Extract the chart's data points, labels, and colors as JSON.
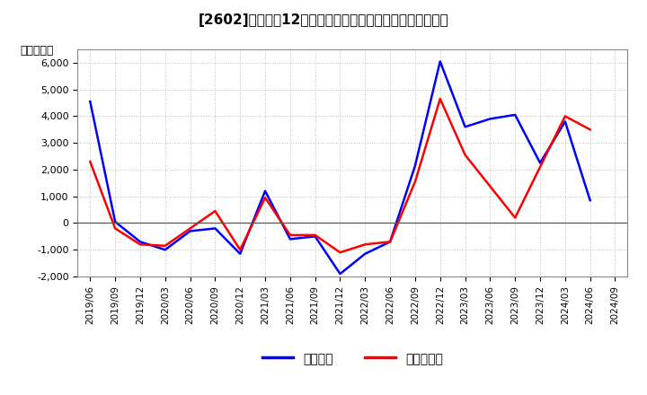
{
  "title_prefix": "[2602]　",
  "title_main": "利益だ12か月移動合計の対前年同期増減額の推移",
  "ylabel": "（百万円）",
  "ylim": [
    -2000,
    6500
  ],
  "yticks": [
    -2000,
    -1000,
    0,
    1000,
    2000,
    3000,
    4000,
    5000,
    6000
  ],
  "legend_labels": [
    "経常利益",
    "当期純利益"
  ],
  "line_colors": [
    "#0000ff",
    "#ff0000"
  ],
  "background_color": "#ffffff",
  "plot_bg_color": "#ffffff",
  "grid_color": "#aaaaaa",
  "x_labels": [
    "2019/06",
    "2019/09",
    "2019/12",
    "2020/03",
    "2020/06",
    "2020/09",
    "2020/12",
    "2021/03",
    "2021/06",
    "2021/09",
    "2021/12",
    "2022/03",
    "2022/06",
    "2022/09",
    "2022/12",
    "2023/03",
    "2023/06",
    "2023/09",
    "2023/12",
    "2024/03",
    "2024/06",
    "2024/09"
  ],
  "blue_values": [
    4550,
    50,
    -700,
    -1000,
    -300,
    -200,
    -1150,
    1200,
    -600,
    -500,
    -1900,
    -1150,
    -700,
    2150,
    6050,
    3600,
    3900,
    4050,
    2250,
    3800,
    850,
    null
  ],
  "red_values": [
    2300,
    -200,
    -800,
    -850,
    null,
    450,
    -1000,
    950,
    -450,
    -450,
    -1100,
    -800,
    -700,
    1550,
    4650,
    2550,
    null,
    200,
    null,
    4000,
    3500,
    null
  ],
  "zero_line_color": "#555555",
  "axis_color": "#555555",
  "tick_fontsize": 8,
  "xlabel_fontsize": 7.5,
  "title_fontsize": 11,
  "legend_fontsize": 10,
  "line_width": 1.8
}
